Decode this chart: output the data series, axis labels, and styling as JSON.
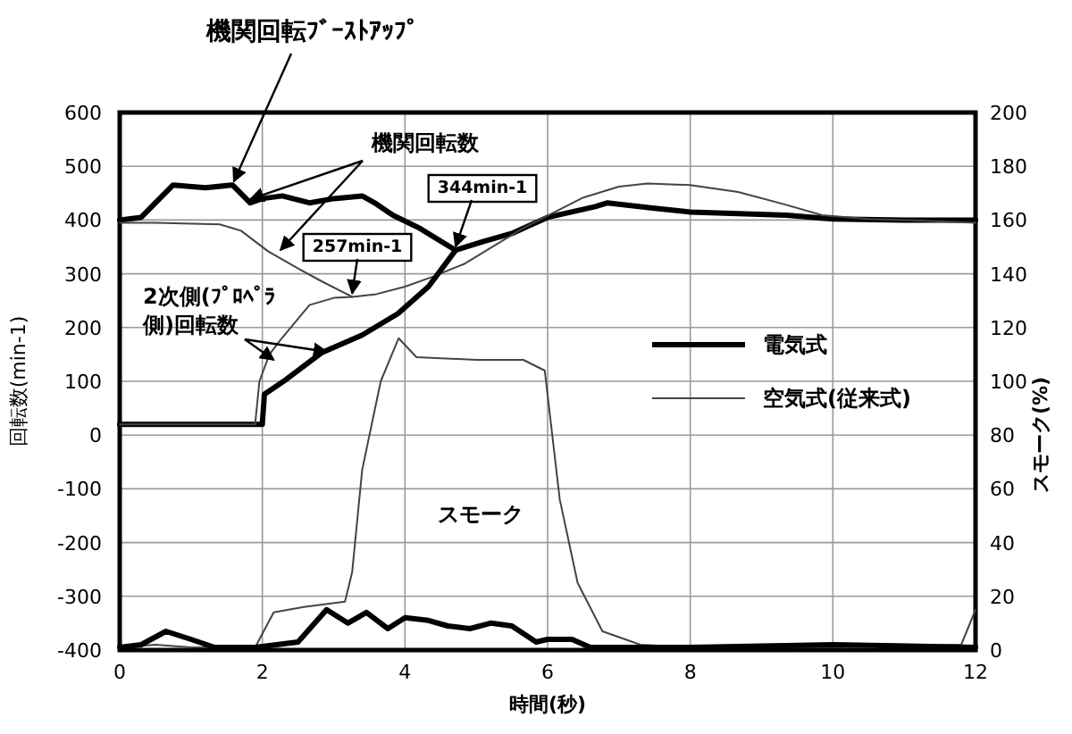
{
  "chart_data": {
    "type": "line",
    "xlabel": "時間(秒)",
    "ylabel": "回転数(min-1)",
    "y2label": "スモーク(%)",
    "xlim": [
      0,
      12
    ],
    "xticks": [
      0,
      2,
      4,
      6,
      8,
      10,
      12
    ],
    "ylim": [
      -400,
      600
    ],
    "yticks": [
      -400,
      -300,
      -200,
      -100,
      0,
      100,
      200,
      300,
      400,
      500,
      600
    ],
    "y2lim": [
      0,
      200
    ],
    "y2ticks": [
      0,
      20,
      40,
      60,
      80,
      100,
      120,
      140,
      160,
      180,
      200
    ],
    "grid": true,
    "legend": "right",
    "series": [
      {
        "name": "電気式",
        "color": "#000000",
        "x": [
          0,
          0.3,
          0.75,
          1.2,
          1.58,
          1.83,
          2.0,
          2.28,
          2.66,
          3.0,
          3.4,
          3.6,
          3.83,
          4.2,
          4.71,
          5.1,
          5.5,
          6.0,
          6.67,
          6.84,
          7.5,
          8.0,
          9.35,
          10,
          11,
          12
        ],
        "values": [
          400,
          405,
          465,
          460,
          465,
          432,
          440,
          445,
          432,
          440,
          445,
          430,
          409,
          385,
          344,
          360,
          375,
          405,
          425,
          432,
          422,
          415,
          409,
          402,
          400,
          400
        ]
      },
      {
        "name": "空気式(従来式)",
        "color": "#444444",
        "x": [
          0,
          0.5,
          1.4,
          1.7,
          2.08,
          2.5,
          2.83,
          3.26,
          3.6,
          4.0,
          4.4,
          4.84,
          5.66,
          6.5,
          7.0,
          7.4,
          8.0,
          8.67,
          9.3,
          9.85,
          10.5,
          11,
          12
        ],
        "values": [
          395,
          395,
          392,
          380,
          342,
          310,
          286,
          257,
          262,
          276,
          295,
          319,
          385,
          442,
          462,
          468,
          465,
          452,
          430,
          409,
          402,
          400,
          395
        ]
      },
      {
        "color": "#000000",
        "x": [
          0,
          1.0,
          2.0,
          2.03,
          2.33,
          2.83,
          3.4,
          3.9,
          4.33,
          4.66,
          4.71
        ],
        "values": [
          20,
          20,
          20,
          76,
          103,
          153,
          186,
          226,
          276,
          335,
          344
        ]
      },
      {
        "color": "#444444",
        "x": [
          0,
          1.0,
          1.9,
          1.96,
          2.1,
          2.25,
          2.66,
          3.0,
          3.26
        ],
        "values": [
          20,
          20,
          20,
          100,
          150,
          176,
          242,
          255,
          257
        ]
      },
      {
        "color": "#444444",
        "axis": "y2",
        "x": [
          0,
          0.5,
          1.0,
          1.9,
          2.16,
          2.58,
          3.16,
          3.26,
          3.4,
          3.66,
          3.91,
          4.16,
          5.0,
          5.66,
          5.96,
          6.17,
          6.42,
          6.77,
          7.3,
          8,
          10,
          11.8,
          12
        ],
        "values": [
          1,
          2,
          1,
          1,
          14,
          16,
          18,
          29,
          67,
          100,
          116,
          109,
          108,
          108,
          104,
          56,
          25,
          7,
          2,
          1,
          1,
          2,
          15
        ]
      },
      {
        "color": "#000000",
        "axis": "y2",
        "x": [
          0,
          0.3,
          0.65,
          1.0,
          1.33,
          1.9,
          2.5,
          2.9,
          3.2,
          3.46,
          3.76,
          4.0,
          4.33,
          4.6,
          4.91,
          5.2,
          5.5,
          5.84,
          6.0,
          6.34,
          6.6,
          8,
          10,
          12
        ],
        "values": [
          1,
          2,
          7,
          4,
          1,
          1,
          3,
          15,
          10,
          14,
          8,
          12,
          11,
          9,
          8,
          10,
          9,
          3,
          4,
          4,
          1,
          1,
          2,
          1
        ]
      }
    ],
    "annotations": [
      {
        "text": "機関回転ﾌﾞｰｽﾄｱｯﾌﾟ",
        "x": 1.6,
        "y": 465
      },
      {
        "text": "機関回転数",
        "x": 1.83,
        "y": 432
      },
      {
        "text": "2次側(ﾌﾟﾛﾍﾟﾗ側)回転数",
        "x": 2.16,
        "y": 133
      },
      {
        "text": "344min-1",
        "x": 4.71,
        "y": 344
      },
      {
        "text": "257min-1",
        "x": 3.26,
        "y": 257
      },
      "スモーク"
    ]
  }
}
